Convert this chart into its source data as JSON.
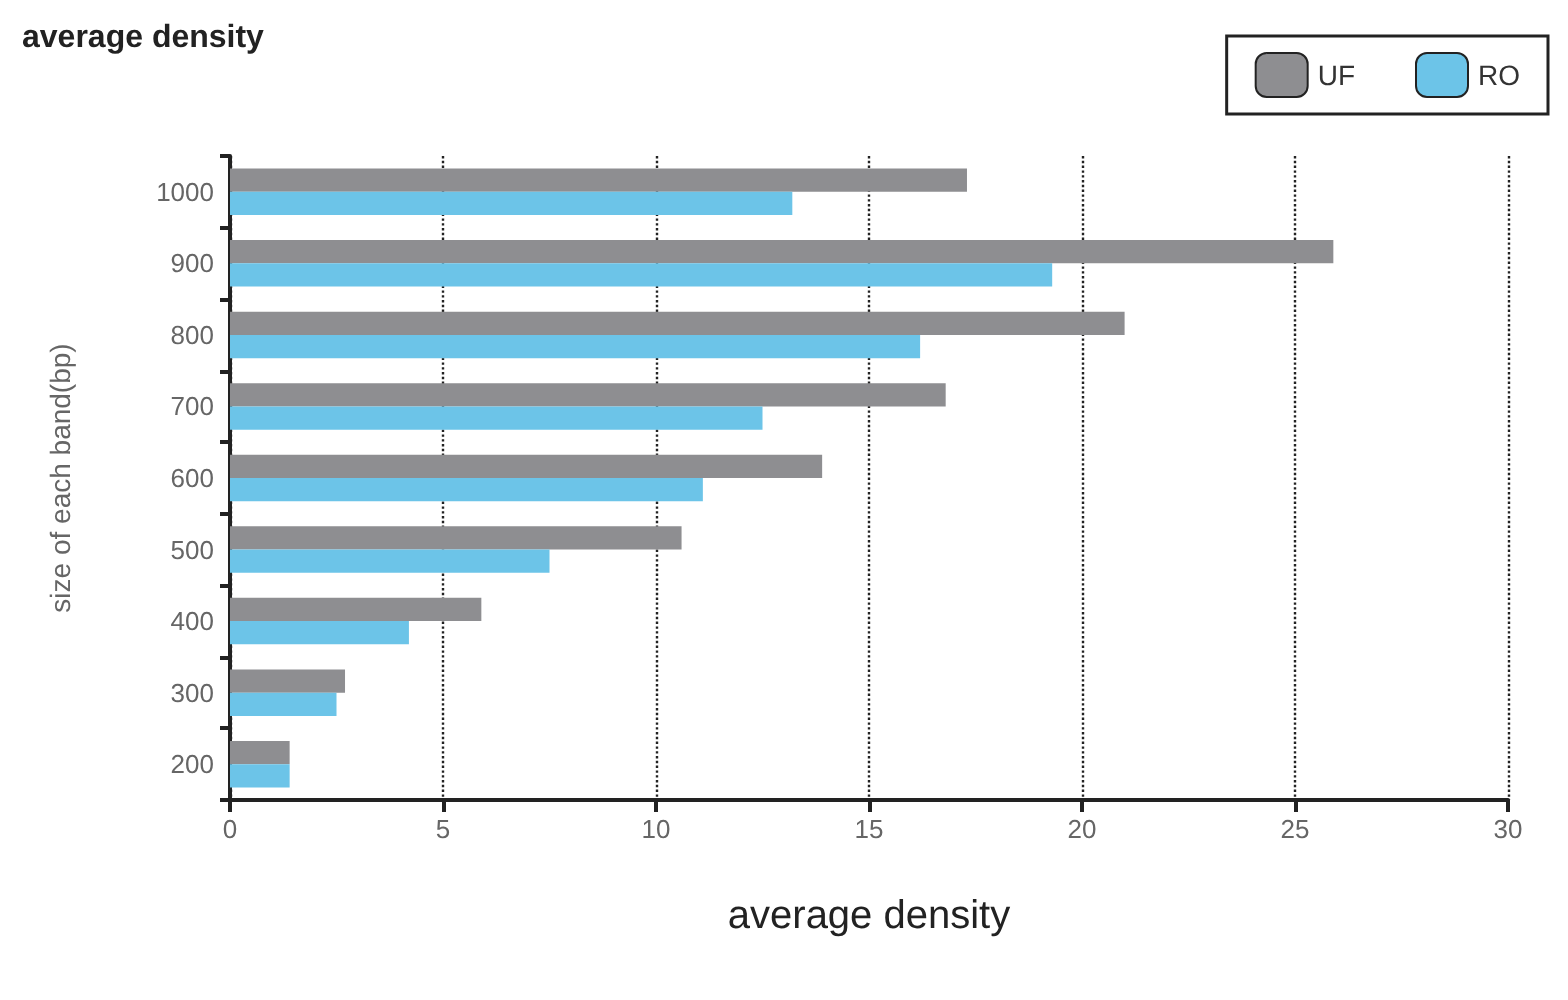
{
  "chart_data": {
    "type": "bar",
    "orientation": "horizontal",
    "title": "average density",
    "xlabel": "average density",
    "ylabel": "size of each band(bp)",
    "categories": [
      "1000",
      "900",
      "800",
      "700",
      "600",
      "500",
      "400",
      "300",
      "200"
    ],
    "series": [
      {
        "name": "UF",
        "color": "#8e8e91",
        "values": [
          17.3,
          25.9,
          21.0,
          16.8,
          13.9,
          10.6,
          5.9,
          2.7,
          1.4
        ]
      },
      {
        "name": "RO",
        "color": "#6cc4e8",
        "values": [
          13.2,
          19.3,
          16.2,
          12.5,
          11.1,
          7.5,
          4.2,
          2.5,
          1.4
        ]
      }
    ],
    "xlim": [
      0,
      30
    ],
    "xticks": [
      0,
      5,
      10,
      15,
      20,
      25,
      30
    ],
    "grid": "x",
    "legend": "top right"
  }
}
